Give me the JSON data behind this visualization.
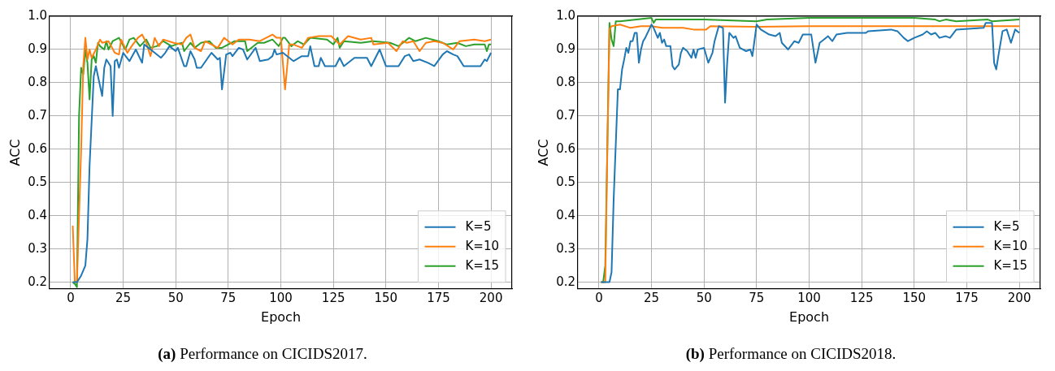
{
  "chart_data": [
    {
      "type": "line",
      "xlabel": "Epoch",
      "ylabel": "ACC",
      "xlim": [
        -10,
        210
      ],
      "ylim": [
        0.18,
        1.0
      ],
      "xticks": [
        0,
        25,
        50,
        75,
        100,
        125,
        150,
        175,
        200
      ],
      "yticks": [
        {
          "value": 0.2,
          "label": "0.2"
        },
        {
          "value": 0.3,
          "label": "0.3"
        },
        {
          "value": 0.4,
          "label": "0.4"
        },
        {
          "value": 0.5,
          "label": "0.5"
        },
        {
          "value": 0.6,
          "label": "0.6"
        },
        {
          "value": 0.7,
          "label": "0.7"
        },
        {
          "value": 0.8,
          "label": "0.8"
        },
        {
          "value": 0.9,
          "label": "0.9"
        },
        {
          "value": 1.0,
          "label": "1.0"
        }
      ],
      "grid": true,
      "legend": "bottom right",
      "annotations": [
        "(a) Performance on CICIDS2017."
      ],
      "series": [
        {
          "name": "K=5",
          "color": "#1f77b4",
          "x": [
            1,
            3,
            5,
            7,
            8,
            9,
            11,
            12,
            15,
            16,
            17,
            19,
            20,
            21,
            22,
            23,
            25,
            28,
            31,
            34,
            35,
            37,
            40,
            43,
            45,
            47,
            50,
            51,
            54,
            55,
            57,
            59,
            60,
            62,
            67,
            70,
            71,
            72,
            74,
            76,
            77,
            80,
            82,
            84,
            88,
            90,
            94,
            96,
            97,
            98,
            101,
            106,
            110,
            113,
            114,
            116,
            118,
            119,
            121,
            126,
            128,
            130,
            135,
            141,
            143,
            147,
            150,
            156,
            159,
            161,
            163,
            166,
            170,
            173,
            177,
            179,
            182,
            184,
            187,
            195,
            197,
            198,
            200
          ],
          "values": [
            0.2,
            0.2,
            0.22,
            0.25,
            0.33,
            0.55,
            0.82,
            0.85,
            0.76,
            0.845,
            0.87,
            0.85,
            0.7,
            0.865,
            0.87,
            0.845,
            0.89,
            0.865,
            0.9,
            0.86,
            0.915,
            0.905,
            0.89,
            0.875,
            0.89,
            0.91,
            0.895,
            0.905,
            0.85,
            0.85,
            0.895,
            0.87,
            0.845,
            0.845,
            0.89,
            0.87,
            0.875,
            0.78,
            0.885,
            0.89,
            0.88,
            0.905,
            0.9,
            0.87,
            0.905,
            0.865,
            0.87,
            0.88,
            0.9,
            0.885,
            0.89,
            0.865,
            0.88,
            0.88,
            0.91,
            0.85,
            0.85,
            0.875,
            0.85,
            0.85,
            0.875,
            0.85,
            0.875,
            0.875,
            0.85,
            0.9,
            0.85,
            0.85,
            0.88,
            0.885,
            0.865,
            0.87,
            0.86,
            0.85,
            0.885,
            0.895,
            0.885,
            0.88,
            0.85,
            0.85,
            0.87,
            0.865,
            0.89
          ]
        },
        {
          "name": "K=10",
          "color": "#ff7f0e",
          "x": [
            1,
            2,
            3,
            5,
            6,
            7,
            8,
            9,
            10,
            12,
            14,
            15,
            18,
            21,
            23,
            24,
            27,
            29,
            32,
            34,
            36,
            38,
            40,
            42,
            44,
            49,
            53,
            55,
            57,
            59,
            62,
            64,
            70,
            73,
            77,
            80,
            85,
            90,
            96,
            98,
            100,
            102,
            104,
            106,
            110,
            113,
            118,
            124,
            128,
            132,
            138,
            143,
            144,
            151,
            155,
            158,
            160,
            163,
            166,
            169,
            173,
            177,
            182,
            185,
            192,
            197,
            200
          ],
          "values": [
            0.37,
            0.2,
            0.2,
            0.6,
            0.85,
            0.935,
            0.87,
            0.9,
            0.875,
            0.9,
            0.93,
            0.92,
            0.925,
            0.89,
            0.885,
            0.93,
            0.89,
            0.91,
            0.935,
            0.945,
            0.92,
            0.88,
            0.935,
            0.91,
            0.93,
            0.92,
            0.915,
            0.935,
            0.945,
            0.905,
            0.895,
            0.925,
            0.905,
            0.935,
            0.915,
            0.93,
            0.93,
            0.925,
            0.945,
            0.935,
            0.935,
            0.78,
            0.915,
            0.915,
            0.905,
            0.935,
            0.94,
            0.94,
            0.915,
            0.94,
            0.93,
            0.935,
            0.915,
            0.92,
            0.895,
            0.925,
            0.92,
            0.925,
            0.895,
            0.92,
            0.925,
            0.92,
            0.9,
            0.925,
            0.93,
            0.925,
            0.93
          ]
        },
        {
          "name": "K=15",
          "color": "#2ca02c",
          "x": [
            1,
            2,
            3,
            4,
            5,
            6,
            7,
            8,
            9,
            10,
            11,
            12,
            13,
            14,
            16,
            17,
            18,
            20,
            23,
            26,
            28,
            30,
            33,
            36,
            38,
            41,
            44,
            48,
            50,
            53,
            54,
            57,
            59,
            62,
            66,
            69,
            72,
            78,
            83,
            84,
            89,
            92,
            96,
            99,
            101,
            102,
            105,
            108,
            111,
            114,
            122,
            125,
            127,
            128,
            130,
            138,
            144,
            152,
            156,
            159,
            161,
            164,
            169,
            175,
            179,
            184,
            188,
            192,
            197,
            198,
            199,
            200
          ],
          "values": [
            0.2,
            0.195,
            0.185,
            0.7,
            0.845,
            0.825,
            0.9,
            0.86,
            0.75,
            0.87,
            0.88,
            0.86,
            0.92,
            0.91,
            0.9,
            0.925,
            0.9,
            0.925,
            0.935,
            0.9,
            0.93,
            0.935,
            0.91,
            0.93,
            0.905,
            0.91,
            0.925,
            0.91,
            0.915,
            0.92,
            0.895,
            0.92,
            0.905,
            0.92,
            0.925,
            0.905,
            0.905,
            0.925,
            0.925,
            0.895,
            0.92,
            0.92,
            0.93,
            0.91,
            0.935,
            0.935,
            0.91,
            0.925,
            0.915,
            0.935,
            0.93,
            0.915,
            0.935,
            0.905,
            0.925,
            0.92,
            0.925,
            0.92,
            0.91,
            0.925,
            0.935,
            0.925,
            0.935,
            0.925,
            0.915,
            0.92,
            0.91,
            0.915,
            0.915,
            0.895,
            0.915,
            0.915
          ]
        }
      ]
    },
    {
      "type": "line",
      "xlabel": "Epoch",
      "ylabel": "ACC",
      "xlim": [
        -10,
        210
      ],
      "ylim": [
        0.18,
        1.0
      ],
      "xticks": [
        0,
        25,
        50,
        75,
        100,
        125,
        150,
        175,
        200
      ],
      "yticks": [
        {
          "value": 0.2,
          "label": "0.2"
        },
        {
          "value": 0.3,
          "label": "0.3"
        },
        {
          "value": 0.4,
          "label": "0.4"
        },
        {
          "value": 0.5,
          "label": "0.5"
        },
        {
          "value": 0.6,
          "label": "0.6"
        },
        {
          "value": 0.7,
          "label": "0.7"
        },
        {
          "value": 0.8,
          "label": "0.8"
        },
        {
          "value": 0.9,
          "label": "0.9"
        },
        {
          "value": 1.0,
          "label": "1.0"
        }
      ],
      "grid": true,
      "legend": "bottom right",
      "annotations": [
        "(b) Performance on CICIDS2018."
      ],
      "series": [
        {
          "name": "K=5",
          "color": "#1f77b4",
          "x": [
            1,
            5,
            6,
            7,
            9,
            10,
            11,
            12,
            13,
            14,
            15,
            16,
            17,
            18,
            19,
            20,
            21,
            22,
            25,
            26,
            28,
            29,
            30,
            31,
            32,
            34,
            35,
            36,
            38,
            39,
            40,
            42,
            44,
            45,
            46,
            47,
            50,
            52,
            54,
            55,
            57,
            59,
            60,
            61,
            62,
            64,
            65,
            67,
            70,
            72,
            73,
            75,
            77,
            81,
            84,
            86,
            87,
            90,
            93,
            95,
            97,
            101,
            103,
            105,
            107,
            109,
            111,
            113,
            118,
            127,
            128,
            139,
            142,
            145,
            147,
            150,
            154,
            156,
            158,
            160,
            162,
            165,
            167,
            170,
            183,
            184,
            187,
            188,
            189,
            190,
            192,
            194,
            196,
            198,
            200
          ],
          "values": [
            0.2,
            0.2,
            0.23,
            0.45,
            0.78,
            0.78,
            0.84,
            0.87,
            0.905,
            0.89,
            0.925,
            0.925,
            0.95,
            0.95,
            0.86,
            0.9,
            0.925,
            0.935,
            0.975,
            0.965,
            0.935,
            0.95,
            0.92,
            0.93,
            0.91,
            0.91,
            0.85,
            0.84,
            0.855,
            0.89,
            0.905,
            0.895,
            0.875,
            0.9,
            0.875,
            0.9,
            0.905,
            0.86,
            0.89,
            0.925,
            0.97,
            0.965,
            0.74,
            0.86,
            0.95,
            0.935,
            0.94,
            0.905,
            0.895,
            0.9,
            0.88,
            0.975,
            0.96,
            0.945,
            0.94,
            0.95,
            0.92,
            0.9,
            0.925,
            0.92,
            0.945,
            0.945,
            0.86,
            0.92,
            0.93,
            0.94,
            0.925,
            0.945,
            0.95,
            0.95,
            0.955,
            0.96,
            0.955,
            0.935,
            0.925,
            0.935,
            0.945,
            0.955,
            0.945,
            0.95,
            0.935,
            0.94,
            0.935,
            0.96,
            0.965,
            0.98,
            0.98,
            0.86,
            0.84,
            0.88,
            0.955,
            0.96,
            0.92,
            0.96,
            0.95
          ]
        },
        {
          "name": "K=10",
          "color": "#ff7f0e",
          "x": [
            1,
            3,
            4,
            5,
            6,
            10,
            15,
            20,
            25,
            30,
            40,
            45,
            51,
            53,
            75,
            100,
            150,
            200
          ],
          "values": [
            0.2,
            0.2,
            0.6,
            0.96,
            0.97,
            0.975,
            0.965,
            0.97,
            0.97,
            0.965,
            0.965,
            0.96,
            0.96,
            0.97,
            0.968,
            0.97,
            0.97,
            0.97
          ]
        },
        {
          "name": "K=15",
          "color": "#2ca02c",
          "x": [
            1,
            2,
            3,
            5,
            6,
            7,
            8,
            10,
            25,
            26,
            27,
            50,
            75,
            80,
            100,
            150,
            160,
            162,
            165,
            170,
            185,
            187,
            200
          ],
          "values": [
            0.2,
            0.2,
            0.25,
            0.98,
            0.93,
            0.91,
            0.985,
            0.985,
            0.995,
            0.98,
            0.99,
            0.99,
            0.985,
            0.99,
            0.995,
            0.995,
            0.99,
            0.985,
            0.99,
            0.985,
            0.99,
            0.985,
            0.99
          ]
        }
      ]
    }
  ]
}
